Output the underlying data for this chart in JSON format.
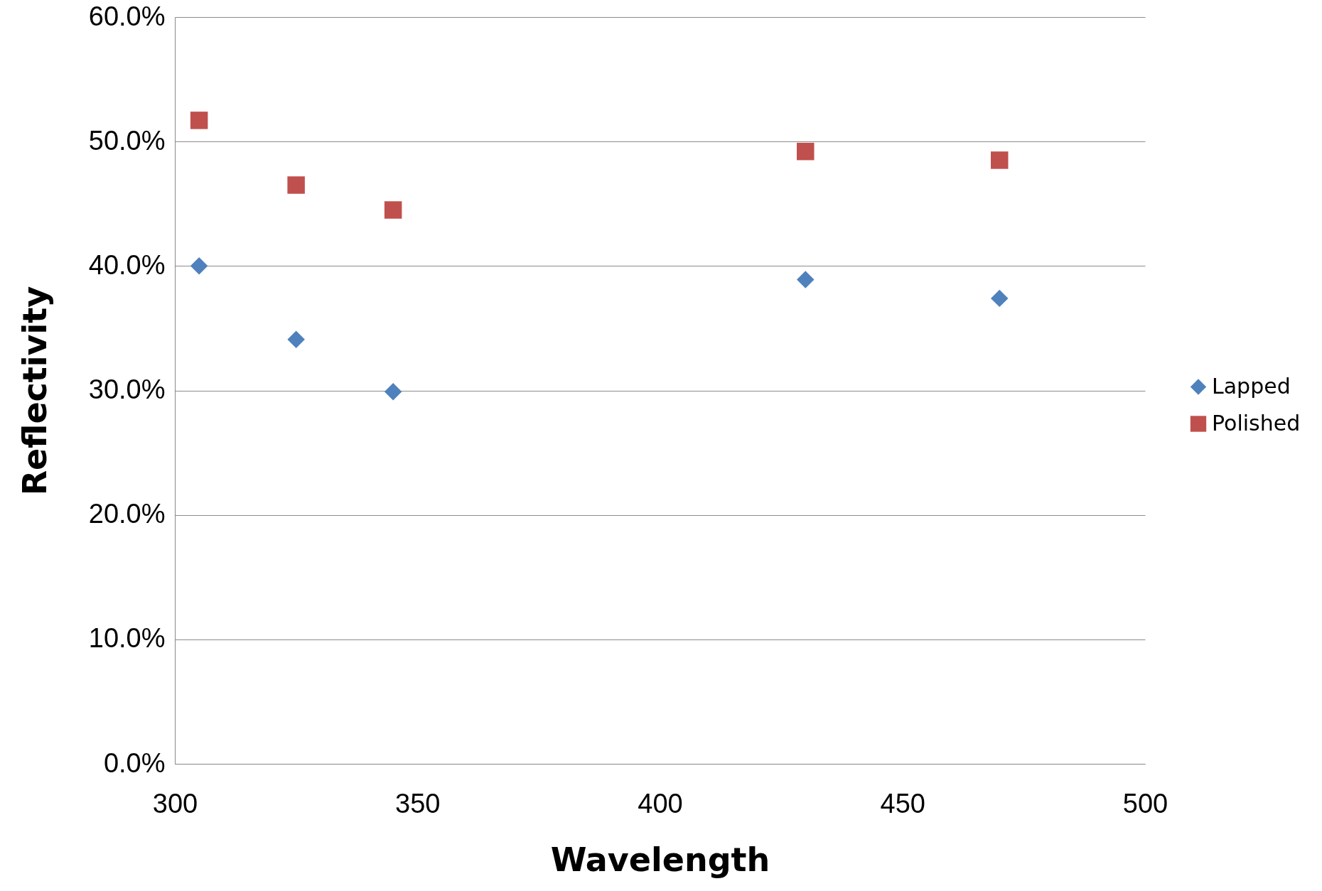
{
  "chart_data": {
    "type": "scatter",
    "xlabel": "Wavelength",
    "ylabel": "Reflectivity",
    "xlim": [
      300,
      500
    ],
    "xticks": [
      300,
      350,
      400,
      450,
      500
    ],
    "ylim": [
      0,
      60
    ],
    "yticks": [
      {
        "value": 0,
        "label": "0.0%"
      },
      {
        "value": 10,
        "label": "10.0%"
      },
      {
        "value": 20,
        "label": "20.0%"
      },
      {
        "value": 30,
        "label": "30.0%"
      },
      {
        "value": 40,
        "label": "40.0%"
      },
      {
        "value": 50,
        "label": "50.0%"
      },
      {
        "value": 60,
        "label": "60.0%"
      }
    ],
    "grid": "y",
    "legend": "right",
    "series": [
      {
        "name": "Lapped",
        "color": "#4f81bd",
        "marker": "diamond",
        "x": [
          305,
          325,
          345,
          430,
          470
        ],
        "values": [
          40.0,
          34.1,
          29.9,
          38.9,
          37.4
        ]
      },
      {
        "name": "Polished",
        "color": "#c0504d",
        "marker": "square",
        "x": [
          305,
          325,
          345,
          430,
          470
        ],
        "values": [
          51.7,
          46.5,
          44.5,
          49.2,
          48.5
        ]
      }
    ]
  }
}
